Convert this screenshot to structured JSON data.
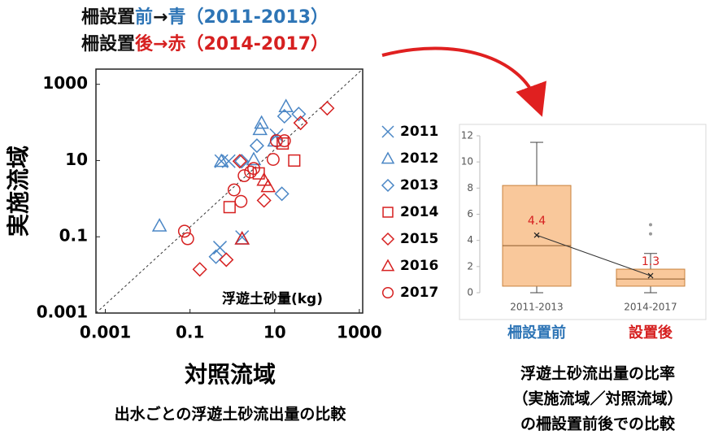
{
  "header": {
    "lines": [
      [
        {
          "text": "柵設置",
          "color": "#111111"
        },
        {
          "text": "前",
          "color": "#2e75b6"
        },
        {
          "text": "→",
          "color": "#111111"
        },
        {
          "text": "青（2011-2013）",
          "color": "#2e75b6"
        }
      ],
      [
        {
          "text": "柵設置",
          "color": "#111111"
        },
        {
          "text": "後",
          "color": "#d62020"
        },
        {
          "text": "→",
          "color": "#d62020"
        },
        {
          "text": "赤（2014-2017）",
          "color": "#d62020"
        }
      ]
    ]
  },
  "chart_data": [
    {
      "type": "scatter",
      "annotation": "浮遊土砂量(kg)",
      "x_label": "対照流域",
      "y_label": "実施流域",
      "caption": "出水ごとの浮遊土砂流出量の比較",
      "xscale": "log",
      "yscale": "log",
      "xlim": [
        0.0006,
        1200
      ],
      "ylim": [
        0.001,
        2500
      ],
      "xticks": [
        0.001,
        0.1,
        10,
        1000
      ],
      "yticks": [
        0.001,
        0.1,
        10,
        1000
      ],
      "series": [
        {
          "name": "2011",
          "color": "#4a86c5",
          "marker": "x",
          "x": [
            0.55,
            0.82,
            0.51,
            1.7,
            11
          ],
          "values": [
            9.6,
            9.6,
            0.052,
            0.098,
            46
          ]
        },
        {
          "name": "2012",
          "color": "#4a86c5",
          "marker": "triangle",
          "x": [
            0.019,
            0.55,
            1.7,
            3.2,
            4.5,
            4.9,
            18.5,
            10
          ],
          "values": [
            0.195,
            9.6,
            0.089,
            10.7,
            66,
            97,
            263,
            33
          ]
        },
        {
          "name": "2013",
          "color": "#4a86c5",
          "marker": "diamond",
          "x": [
            0.41,
            1.66,
            3.8,
            14.8,
            17,
            37
          ],
          "values": [
            0.03,
            9.6,
            24.5,
            1.34,
            145,
            166
          ]
        },
        {
          "name": "2014",
          "color": "#d62020",
          "marker": "square",
          "x": [
            0.86,
            4.2,
            15.5,
            29
          ],
          "values": [
            0.6,
            4.6,
            28,
            10
          ]
        },
        {
          "name": "2015",
          "color": "#d62020",
          "marker": "diamond",
          "x": [
            0.17,
            0.72,
            1.5,
            5.6,
            41,
            174
          ],
          "values": [
            0.014,
            0.025,
            9.6,
            0.9,
            97,
            235
          ]
        },
        {
          "name": "2016",
          "color": "#d62020",
          "marker": "triangle",
          "x": [
            1.7,
            5.6,
            7
          ],
          "values": [
            0.089,
            3.1,
            2.1
          ]
        },
        {
          "name": "2017",
          "color": "#d62020",
          "marker": "circle",
          "x": [
            0.074,
            0.088,
            1.6,
            1.1,
            1.9,
            2.7,
            3.2,
            9.2,
            11,
            17
          ],
          "values": [
            0.14,
            0.089,
            0.85,
            1.7,
            4,
            5,
            6.2,
            10.7,
            33,
            33
          ]
        }
      ]
    },
    {
      "type": "box",
      "categories": [
        "2011-2013",
        "2014-2017"
      ],
      "group_labels": [
        {
          "text": "柵設置前",
          "color": "#2e75b6"
        },
        {
          "text": "設置後",
          "color": "#d62020"
        }
      ],
      "caption": [
        "浮遊土砂流出量の比率",
        "（実施流域／対照流域）",
        "の柵設置前後での比較"
      ],
      "ylim": [
        0,
        12
      ],
      "yticks": [
        0,
        2,
        4,
        6,
        8,
        10,
        12
      ],
      "color": "#f9c89b",
      "edge": "#c8823c",
      "mean_color": "#d62020",
      "boxes": [
        {
          "min": 0,
          "q1": 0.5,
          "median": 3.6,
          "q3": 8.2,
          "max": 11.5,
          "mean": 4.4,
          "outliers": []
        },
        {
          "min": 0,
          "q1": 0.5,
          "median": 1.05,
          "q3": 1.8,
          "max": 3,
          "mean": 1.3,
          "outliers": [
            4.5,
            5.2
          ]
        }
      ]
    }
  ]
}
